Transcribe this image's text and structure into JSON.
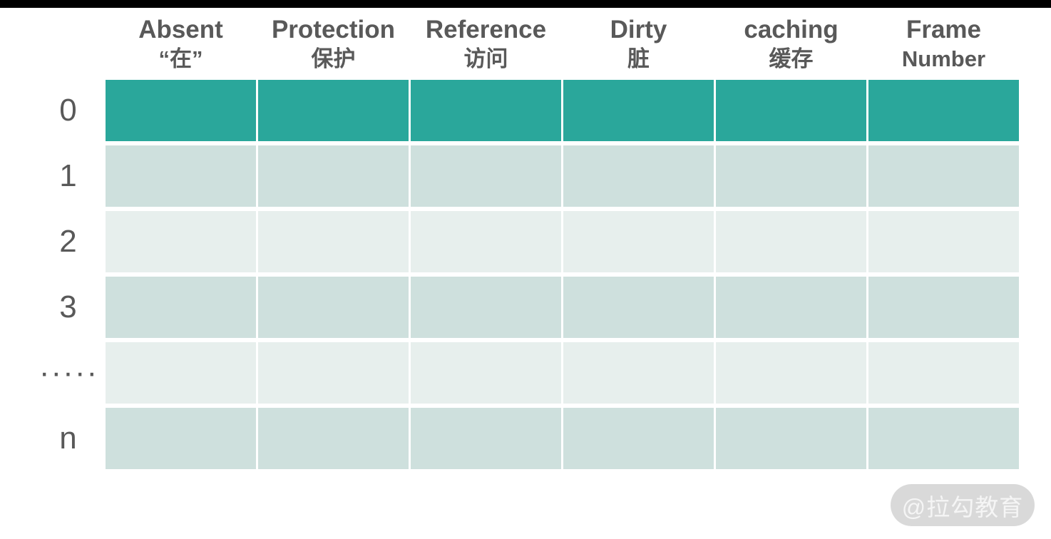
{
  "table": {
    "columns": [
      {
        "line1": "Absent",
        "line2": "“在”"
      },
      {
        "line1": "Protection",
        "line2": "保护"
      },
      {
        "line1": "Reference",
        "line2": "访问"
      },
      {
        "line1": "Dirty",
        "line2": "脏"
      },
      {
        "line1": "caching",
        "line2": "缓存"
      },
      {
        "line1": "Frame",
        "line2": "Number"
      }
    ],
    "rows": [
      {
        "label": "0",
        "tone": "accent"
      },
      {
        "label": "1",
        "tone": "medium"
      },
      {
        "label": "2",
        "tone": "light"
      },
      {
        "label": "3",
        "tone": "medium"
      },
      {
        "label": "·····",
        "tone": "light"
      },
      {
        "label": "n",
        "tone": "medium"
      }
    ]
  },
  "colors": {
    "accent": "#2aa79b",
    "row_medium": "#cee0dd",
    "row_light": "#e7efed",
    "header_text": "#595959",
    "label_text": "#595959",
    "top_bar": "#000000",
    "page_bg": "#ffffff",
    "watermark_bg": "#d9d9d9",
    "watermark_text": "#f5f5f5"
  },
  "watermark": {
    "text": "@拉勾教育"
  }
}
